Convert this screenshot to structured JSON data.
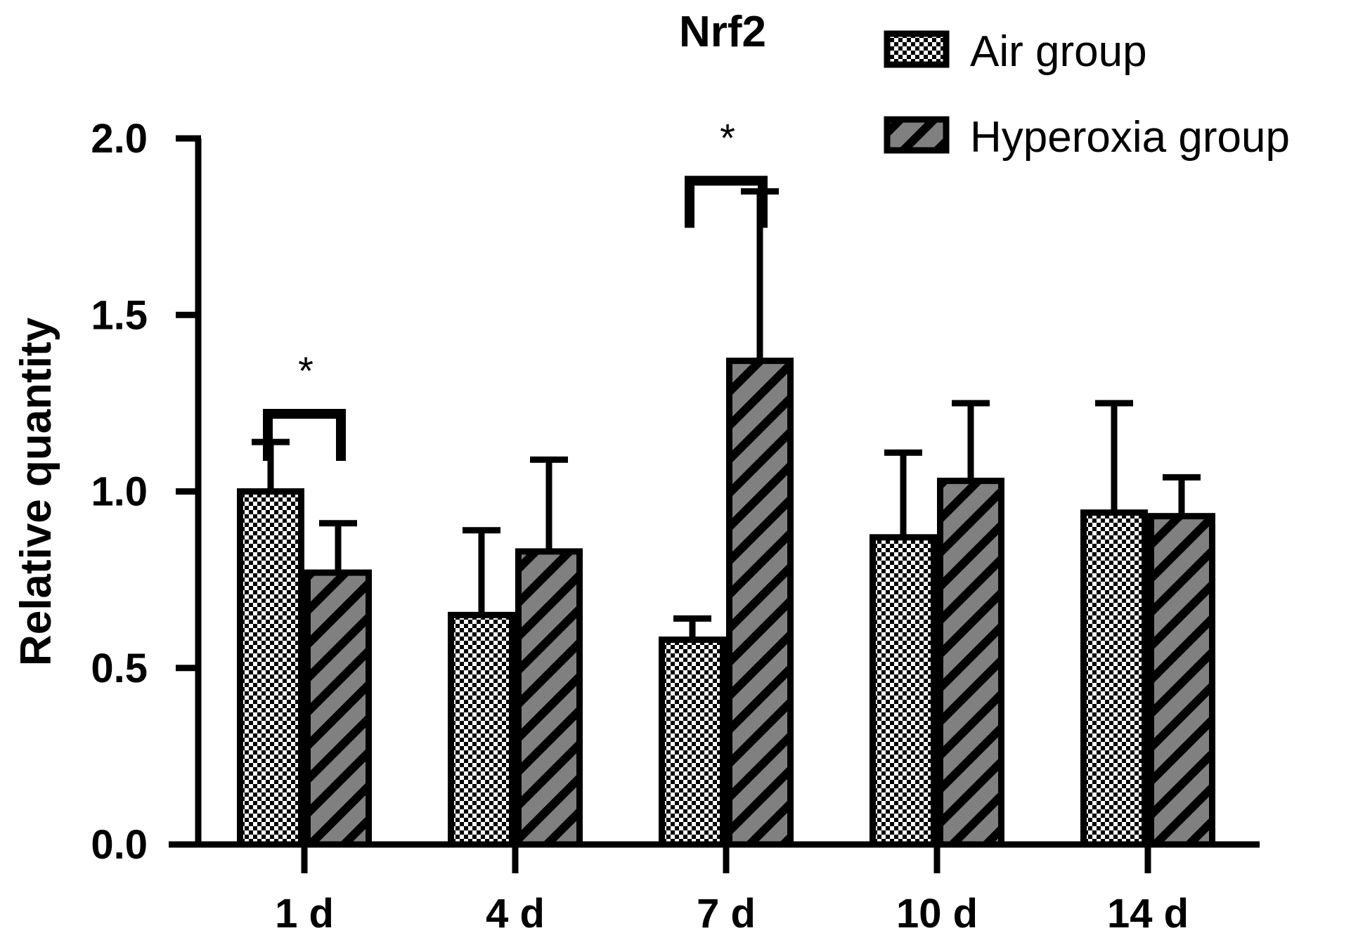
{
  "chart_data": {
    "type": "bar",
    "title": "Nrf2",
    "xlabel": "",
    "ylabel": "Relative quantity",
    "ylim": [
      0,
      2.0
    ],
    "yticks": [
      "0.0",
      "0.5",
      "1.0",
      "1.5",
      "2.0"
    ],
    "ytick_values": [
      0,
      0.5,
      1.0,
      1.5,
      2.0
    ],
    "categories": [
      "1 d",
      "4 d",
      "7 d",
      "10 d",
      "14 d"
    ],
    "series": [
      {
        "name": "Air group",
        "pattern": "checker",
        "values": [
          1.0,
          0.65,
          0.58,
          0.87,
          0.94
        ],
        "error": [
          0.14,
          0.24,
          0.06,
          0.24,
          0.31
        ]
      },
      {
        "name": "Hyperoxia group",
        "pattern": "diagonal-stripe",
        "values": [
          0.77,
          0.83,
          1.37,
          1.03,
          0.93
        ],
        "error": [
          0.14,
          0.26,
          0.48,
          0.22,
          0.11
        ]
      }
    ],
    "significance": [
      {
        "category_index": 0,
        "label": "*",
        "bracket_y": 1.22
      },
      {
        "category_index": 2,
        "label": "*",
        "bracket_y": 1.88
      }
    ],
    "legend": {
      "placement": "top-right"
    },
    "grid": false,
    "colors": {
      "air_fill": "#ffffff",
      "hyperoxia_fill": "#808080",
      "ink": "#000000"
    }
  }
}
